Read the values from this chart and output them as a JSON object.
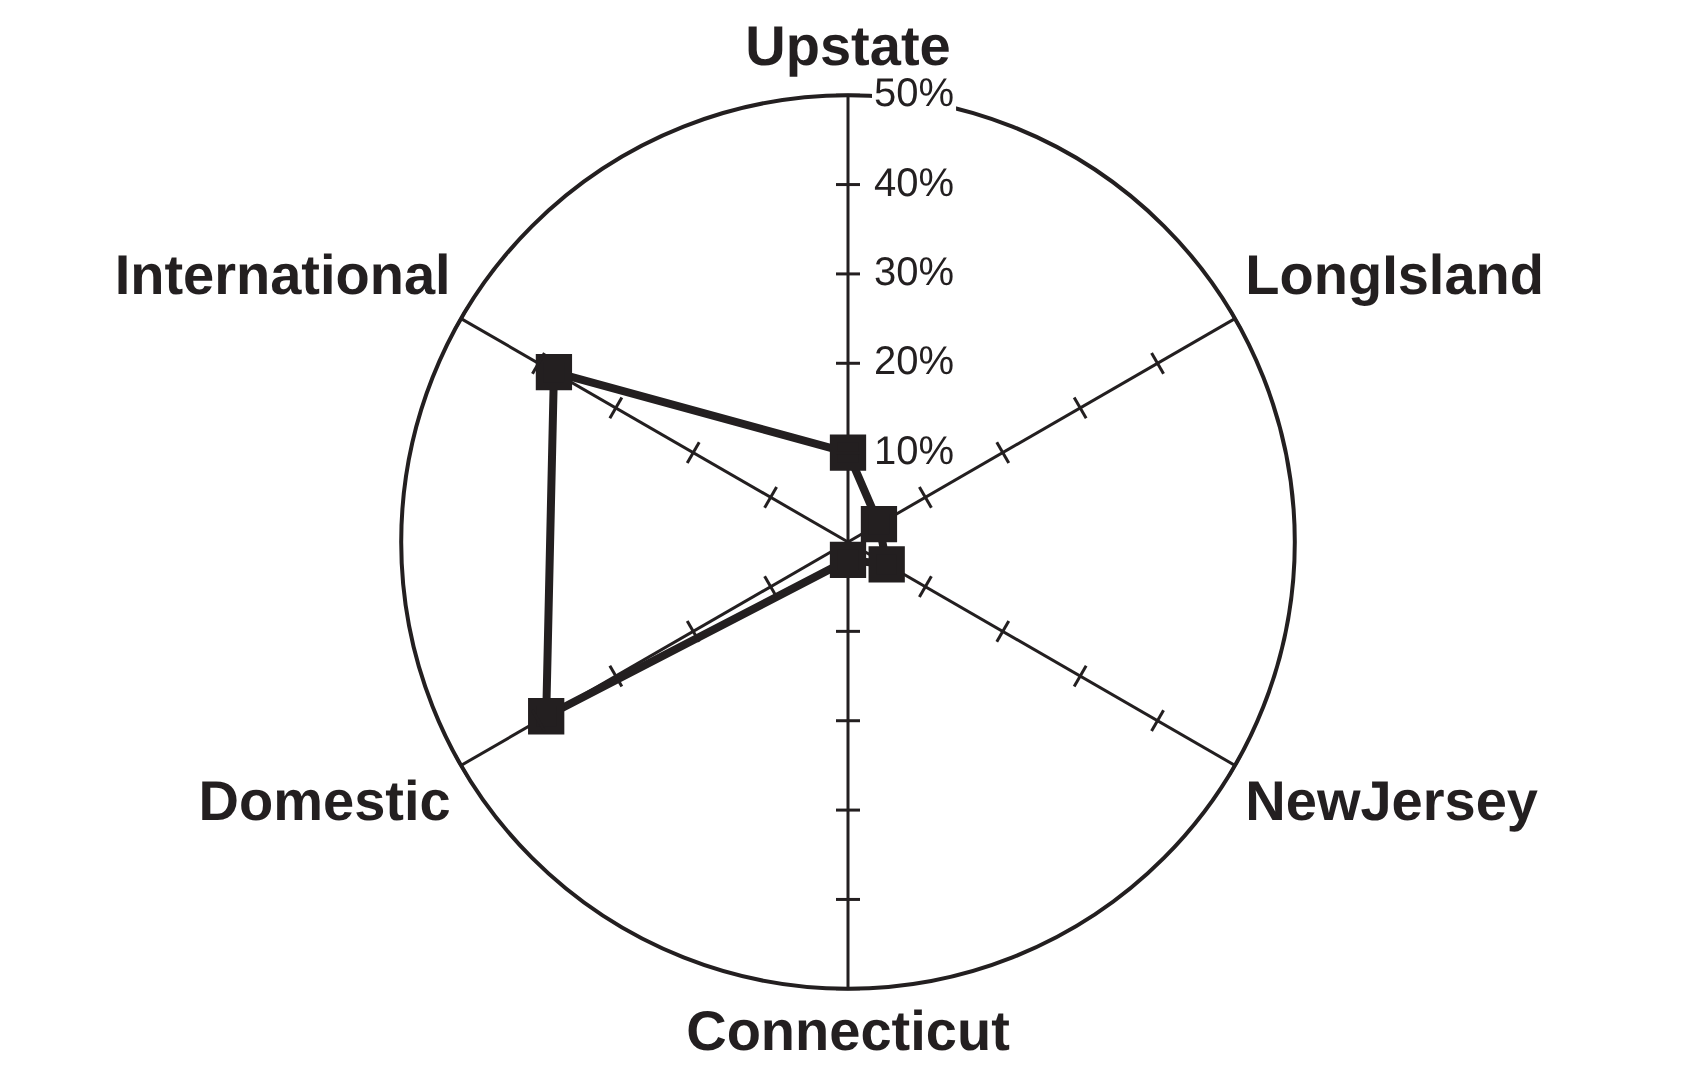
{
  "chart_data": {
    "type": "radar",
    "categories": [
      "Upstate",
      "LongIsland",
      "NewJersey",
      "Connecticut",
      "Domestic",
      "International"
    ],
    "series": [
      {
        "color": "#231f20",
        "values": [
          10,
          4,
          5,
          2,
          39,
          38
        ]
      }
    ],
    "ylim": [
      0,
      50
    ],
    "yticks": [
      {
        "value": 10,
        "label": "10%"
      },
      {
        "value": 20,
        "label": "20%"
      },
      {
        "value": 30,
        "label": "30%"
      },
      {
        "value": 40,
        "label": "40%"
      },
      {
        "value": 50,
        "label": "50%"
      }
    ],
    "marker": "square",
    "legend": false,
    "grid": false
  }
}
